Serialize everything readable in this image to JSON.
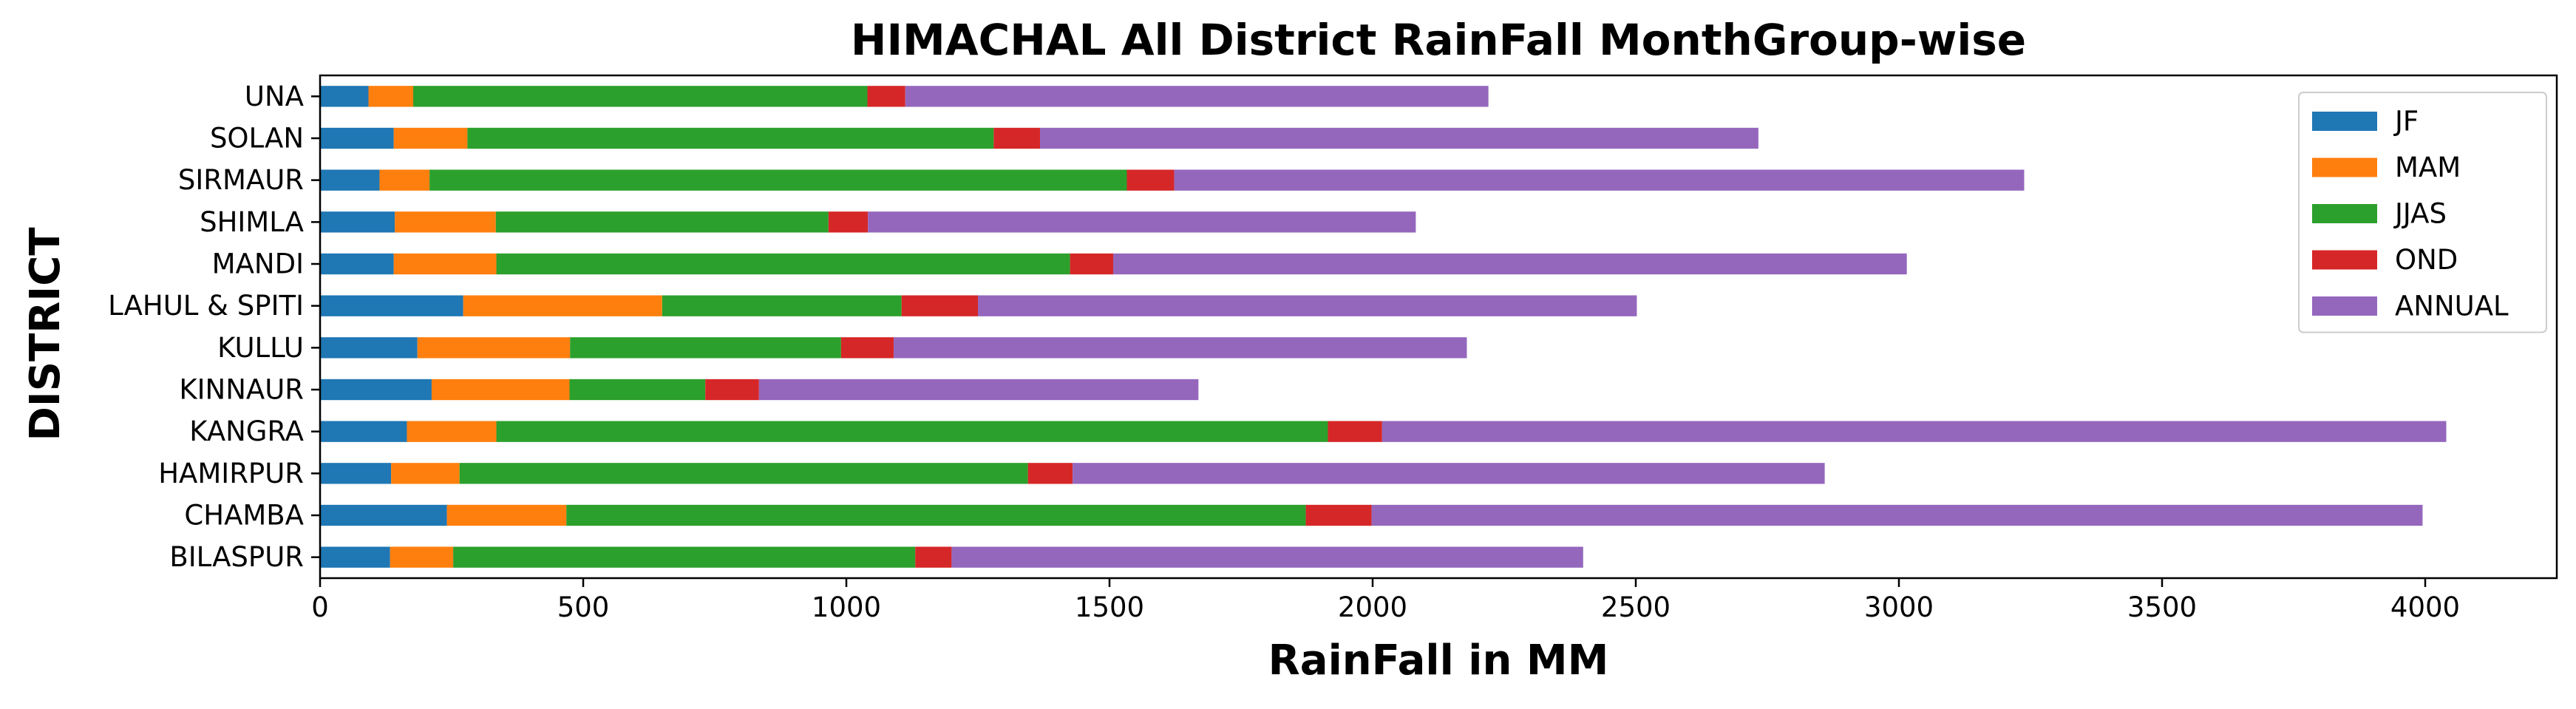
{
  "chart_data": {
    "type": "bar",
    "orientation": "horizontal",
    "stacked": true,
    "title": "HIMACHAL All District RainFall MonthGroup-wise",
    "xlabel": "RainFall in MM",
    "ylabel": "DISTRICT",
    "xlim": [
      0,
      4250
    ],
    "xticks": [
      0,
      500,
      1000,
      1500,
      2000,
      2500,
      3000,
      3500,
      4000
    ],
    "xtick_labels": [
      "0",
      "500",
      "1000",
      "1500",
      "2000",
      "2500",
      "3000",
      "3500",
      "4000"
    ],
    "grid": false,
    "legend_position": "top-right",
    "categories": [
      "UNA",
      "SOLAN",
      "SIRMAUR",
      "SHIMLA",
      "MANDI",
      "LAHUL & SPITI",
      "KULLU",
      "KINNAUR",
      "KANGRA",
      "HAMIRPUR",
      "CHAMBA",
      "BILASPUR"
    ],
    "series": [
      {
        "name": "JF",
        "color": "#1f77b4",
        "values": [
          92,
          140,
          113,
          142,
          140,
          272,
          185,
          212,
          165,
          135,
          241,
          133
        ]
      },
      {
        "name": "MAM",
        "color": "#ff7f0e",
        "values": [
          85,
          140,
          95,
          192,
          195,
          378,
          290,
          262,
          170,
          130,
          227,
          120
        ]
      },
      {
        "name": "JJAS",
        "color": "#2ca02c",
        "values": [
          863,
          1000,
          1325,
          632,
          1090,
          455,
          515,
          258,
          1580,
          1080,
          1405,
          878
        ]
      },
      {
        "name": "OND",
        "color": "#d62728",
        "values": [
          72,
          88,
          90,
          75,
          82,
          145,
          100,
          102,
          103,
          85,
          125,
          69
        ]
      },
      {
        "name": "ANNUAL",
        "color": "#9467bd",
        "values": [
          1108,
          1365,
          1615,
          1041,
          1508,
          1252,
          1089,
          835,
          2022,
          1429,
          1997,
          1200
        ]
      }
    ]
  }
}
